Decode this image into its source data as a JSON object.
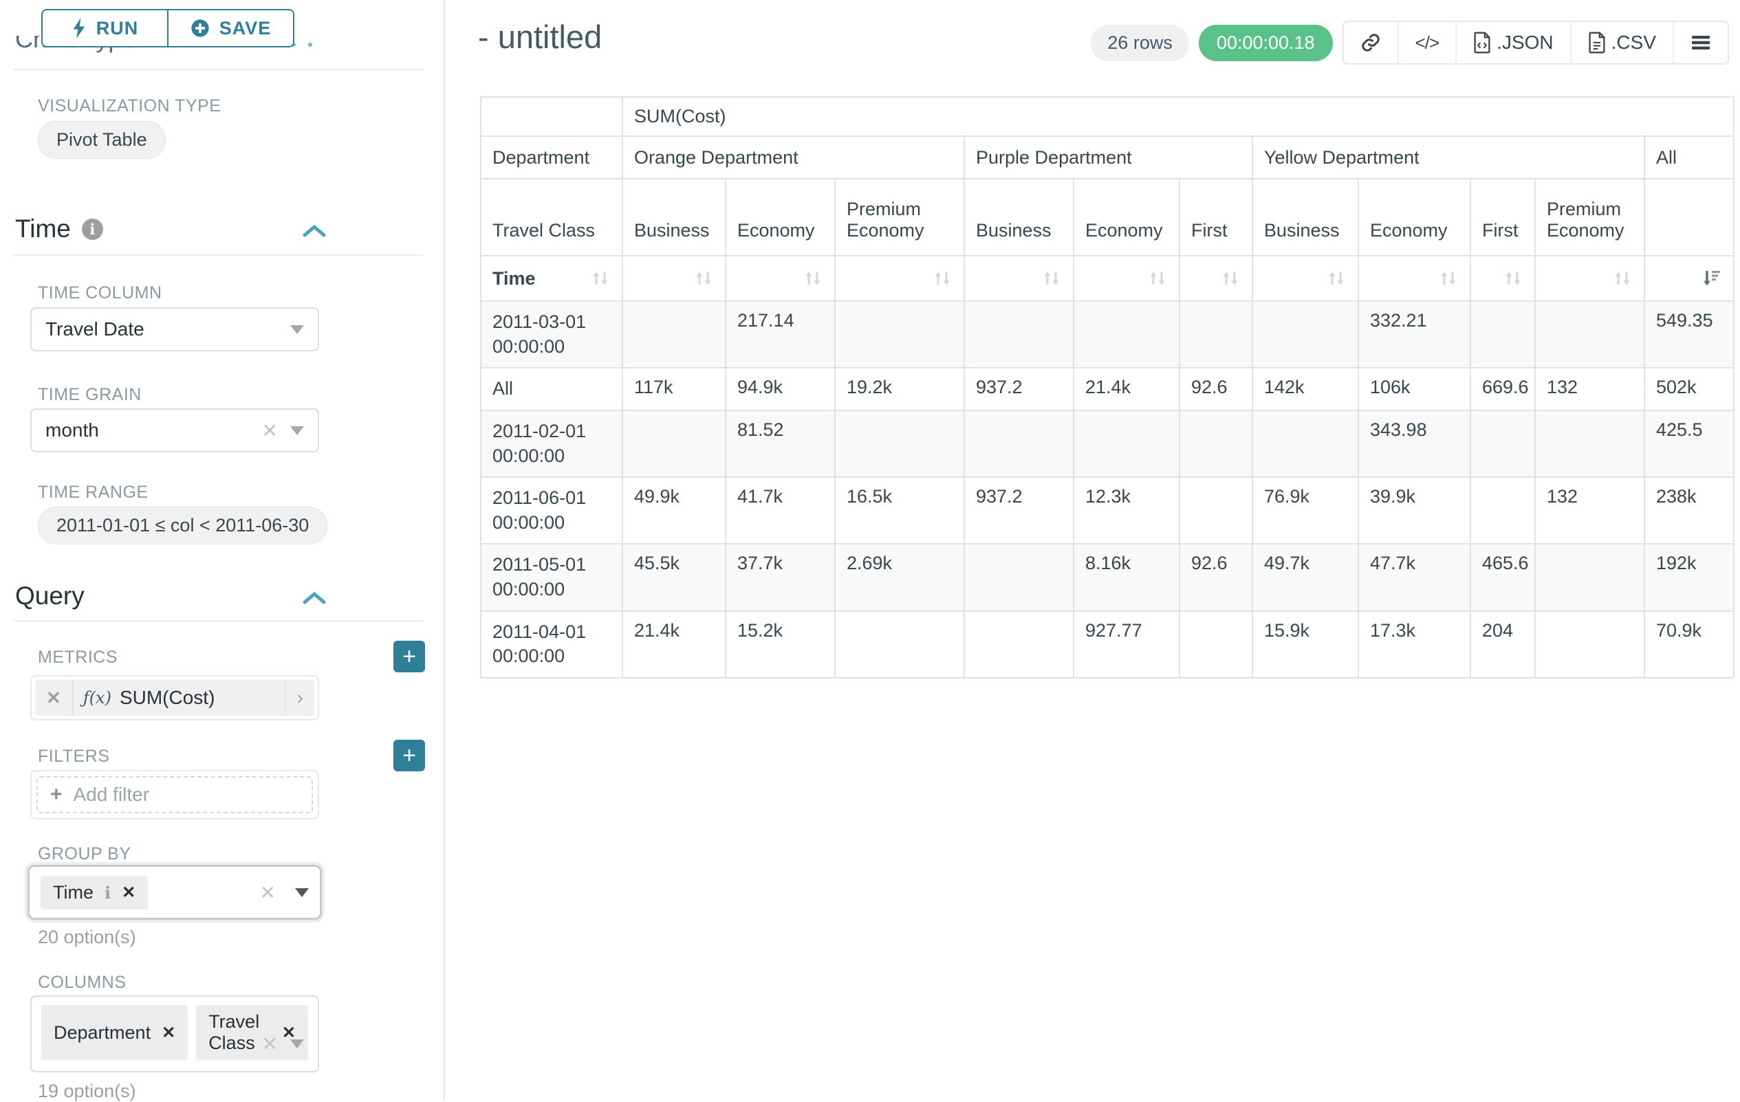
{
  "sidebar": {
    "run_label": "RUN",
    "save_label": "SAVE",
    "chart_type_heading": "Chart Type",
    "viz_type_label": "VISUALIZATION TYPE",
    "viz_type_value": "Pivot Table",
    "time_section_title": "Time",
    "time_column_label": "TIME COLUMN",
    "time_column_value": "Travel Date",
    "time_grain_label": "TIME GRAIN",
    "time_grain_value": "month",
    "time_range_label": "TIME RANGE",
    "time_range_value": "2011-01-01 ≤ col < 2011-06-30",
    "query_section_title": "Query",
    "metrics_label": "METRICS",
    "metric_fx": "ƒ(x)",
    "metric_value": "SUM(Cost)",
    "filters_label": "FILTERS",
    "add_filter_label": "Add filter",
    "group_by_label": "GROUP BY",
    "group_by_tags": [
      "Time"
    ],
    "group_by_hint": "20 option(s)",
    "columns_label": "COLUMNS",
    "columns_tags": [
      "Department",
      "Travel Class"
    ],
    "columns_hint": "19 option(s)"
  },
  "header": {
    "title": "- untitled",
    "rows_badge": "26 rows",
    "timer_badge": "00:00:00.18",
    "export_json_label": ".JSON",
    "export_csv_label": ".CSV"
  },
  "icons": {
    "run": "lightning-bolt",
    "save": "plus-circle",
    "info": "info-circle",
    "collapse": "chevron-up",
    "dropdown": "chevron-down",
    "clear": "x-clear",
    "metric_expand": "chevron-right",
    "add": "plus",
    "link": "link-chain",
    "code": "code-tags",
    "json_file": "file-code",
    "csv_file": "file-text",
    "menu": "hamburger-menu",
    "sort": "sort-arrows",
    "sort_active": "sort-descending"
  },
  "colors": {
    "accent_teal": "#2f7f99",
    "success_green": "#5ac189",
    "border_gray": "#e1e1e1"
  },
  "table": {
    "metric_header": "SUM(Cost)",
    "department_label": "Department",
    "travel_class_label": "Travel Class",
    "time_label": "Time",
    "groups": [
      {
        "name": "Orange Department",
        "cols": [
          "Business",
          "Economy",
          "Premium Economy"
        ]
      },
      {
        "name": "Purple Department",
        "cols": [
          "Business",
          "Economy",
          "First"
        ]
      },
      {
        "name": "Yellow Department",
        "cols": [
          "Business",
          "Economy",
          "First",
          "Premium Economy"
        ]
      },
      {
        "name": "All",
        "cols": [
          ""
        ]
      }
    ],
    "rows": [
      {
        "label": "2011-03-01 00:00:00",
        "values": [
          "",
          "217.14",
          "",
          "",
          "",
          "",
          "",
          "332.21",
          "",
          "",
          "549.35"
        ]
      },
      {
        "label": "All",
        "values": [
          "117k",
          "94.9k",
          "19.2k",
          "937.2",
          "21.4k",
          "92.6",
          "142k",
          "106k",
          "669.6",
          "132",
          "502k"
        ]
      },
      {
        "label": "2011-02-01 00:00:00",
        "values": [
          "",
          "81.52",
          "",
          "",
          "",
          "",
          "",
          "343.98",
          "",
          "",
          "425.5"
        ]
      },
      {
        "label": "2011-06-01 00:00:00",
        "values": [
          "49.9k",
          "41.7k",
          "16.5k",
          "937.2",
          "12.3k",
          "",
          "76.9k",
          "39.9k",
          "",
          "132",
          "238k"
        ]
      },
      {
        "label": "2011-05-01 00:00:00",
        "values": [
          "45.5k",
          "37.7k",
          "2.69k",
          "",
          "8.16k",
          "92.6",
          "49.7k",
          "47.7k",
          "465.6",
          "",
          "192k"
        ]
      },
      {
        "label": "2011-04-01 00:00:00",
        "values": [
          "21.4k",
          "15.2k",
          "",
          "",
          "927.77",
          "",
          "15.9k",
          "17.3k",
          "204",
          "",
          "70.9k"
        ]
      }
    ]
  }
}
